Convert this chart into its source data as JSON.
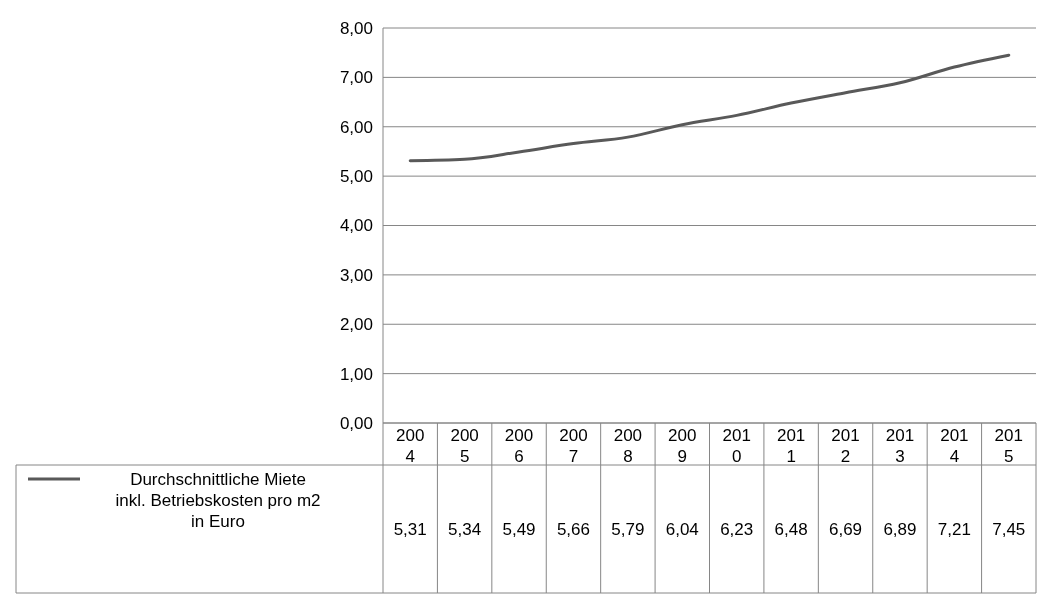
{
  "chart_data": {
    "type": "line",
    "categories": [
      "2004",
      "2005",
      "2006",
      "2007",
      "2008",
      "2009",
      "2010",
      "2011",
      "2012",
      "2013",
      "2014",
      "2015"
    ],
    "series": [
      {
        "name": "Durchschnittliche Miete inkl. Betriebskosten pro m2 in Euro",
        "color": "#595959",
        "values": [
          5.31,
          5.34,
          5.49,
          5.66,
          5.79,
          6.04,
          6.23,
          6.48,
          6.69,
          6.89,
          7.21,
          7.45
        ]
      }
    ],
    "value_labels": [
      "5,31",
      "5,34",
      "5,49",
      "5,66",
      "5,79",
      "6,04",
      "6,23",
      "6,48",
      "6,69",
      "6,89",
      "7,21",
      "7,45"
    ],
    "ylim": [
      0,
      8
    ],
    "yticks": [
      {
        "value": 0,
        "label": "0,00"
      },
      {
        "value": 1,
        "label": "1,00"
      },
      {
        "value": 2,
        "label": "2,00"
      },
      {
        "value": 3,
        "label": "3,00"
      },
      {
        "value": 4,
        "label": "4,00"
      },
      {
        "value": 5,
        "label": "5,00"
      },
      {
        "value": 6,
        "label": "6,00"
      },
      {
        "value": 7,
        "label": "7,00"
      },
      {
        "value": 8,
        "label": "8,00"
      }
    ],
    "grid": "y",
    "legend": "bottom",
    "marker": "none",
    "line_style": "solid"
  }
}
